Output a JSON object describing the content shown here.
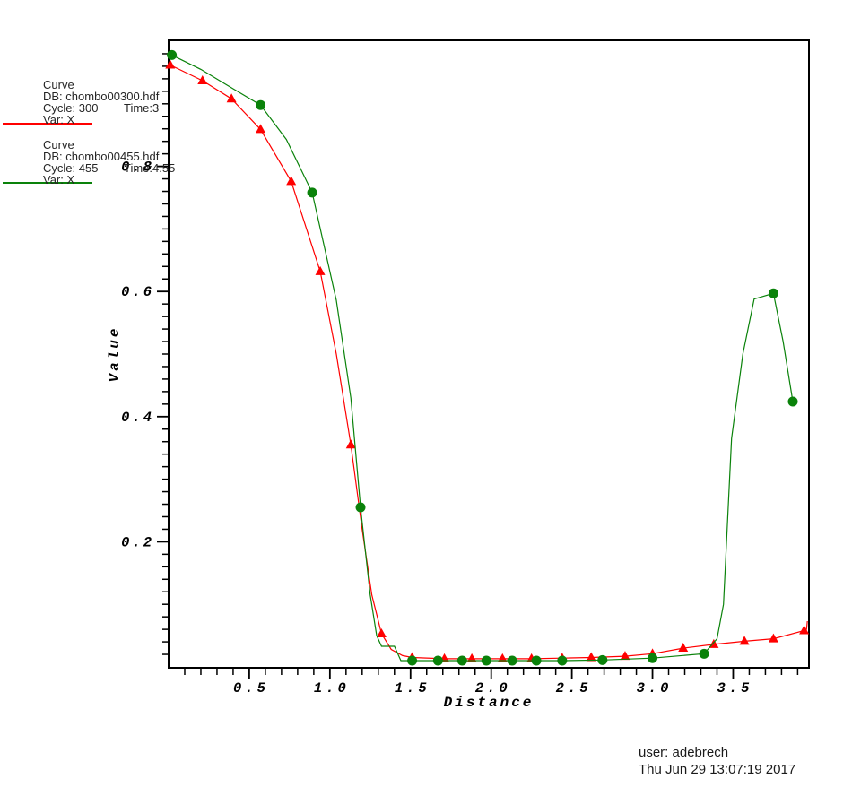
{
  "legend": {
    "curves": [
      {
        "plot_type": "Curve",
        "db": "DB: chombo00300.hdf",
        "cycle": "Cycle: 300",
        "time": "Time:3",
        "var": "Var: X",
        "color": "#ff0000"
      },
      {
        "plot_type": "Curve",
        "db": "DB: chombo00455.hdf",
        "cycle": "Cycle: 455",
        "time": "Time:4.55",
        "var": "Var: X",
        "color": "#0a820a"
      }
    ]
  },
  "footer": {
    "user": "user: adebrech",
    "timestamp": "Thu Jun 29 13:07:19 2017"
  },
  "chart_data": {
    "type": "line",
    "title": "",
    "xlabel": "Distance",
    "ylabel": "Value",
    "xlim": [
      0,
      3.97
    ],
    "ylim": [
      0,
      1.0
    ],
    "x_major_ticks": [
      0.5,
      1.0,
      1.5,
      2.0,
      2.5,
      3.0,
      3.5
    ],
    "y_major_ticks": [
      0.2,
      0.4,
      0.6,
      0.8
    ],
    "x_minor_step": 0.1,
    "y_minor_step": 0.02,
    "grid": false,
    "legend_position": "upper-left-outside",
    "axis_color": "#000000",
    "series": [
      {
        "name": "chombo00300.hdf Var: X",
        "cycle": 300,
        "time": 3,
        "color": "#ff0000",
        "marker": "triangle",
        "points": [
          [
            0.01,
            0.962
          ],
          [
            0.21,
            0.937
          ],
          [
            0.39,
            0.908
          ],
          [
            0.57,
            0.859
          ],
          [
            0.76,
            0.776
          ],
          [
            0.94,
            0.632
          ],
          [
            1.04,
            0.5
          ],
          [
            1.13,
            0.355
          ],
          [
            1.2,
            0.22
          ],
          [
            1.26,
            0.115
          ],
          [
            1.32,
            0.053
          ],
          [
            1.38,
            0.028
          ],
          [
            1.45,
            0.018
          ],
          [
            1.51,
            0.015
          ],
          [
            1.71,
            0.013
          ],
          [
            1.88,
            0.013
          ],
          [
            2.07,
            0.013
          ],
          [
            2.25,
            0.013
          ],
          [
            2.44,
            0.014
          ],
          [
            2.62,
            0.015
          ],
          [
            2.83,
            0.017
          ],
          [
            3.0,
            0.021
          ],
          [
            3.19,
            0.03
          ],
          [
            3.38,
            0.036
          ],
          [
            3.57,
            0.041
          ],
          [
            3.75,
            0.045
          ],
          [
            3.94,
            0.058
          ],
          [
            3.955,
            0.06
          ],
          [
            3.96,
            0.073
          ]
        ],
        "marker_points": [
          [
            0.01,
            0.962
          ],
          [
            0.21,
            0.937
          ],
          [
            0.39,
            0.908
          ],
          [
            0.57,
            0.859
          ],
          [
            0.76,
            0.776
          ],
          [
            0.94,
            0.632
          ],
          [
            1.13,
            0.355
          ],
          [
            1.32,
            0.053
          ],
          [
            1.51,
            0.015
          ],
          [
            1.71,
            0.013
          ],
          [
            1.88,
            0.013
          ],
          [
            2.07,
            0.013
          ],
          [
            2.25,
            0.013
          ],
          [
            2.44,
            0.014
          ],
          [
            2.62,
            0.015
          ],
          [
            2.83,
            0.017
          ],
          [
            3.0,
            0.021
          ],
          [
            3.19,
            0.03
          ],
          [
            3.38,
            0.036
          ],
          [
            3.57,
            0.041
          ],
          [
            3.75,
            0.045
          ],
          [
            3.94,
            0.058
          ]
        ]
      },
      {
        "name": "chombo00455.hdf Var: X",
        "cycle": 455,
        "time": 4.55,
        "color": "#0a820a",
        "marker": "circle",
        "points": [
          [
            0.02,
            0.978
          ],
          [
            0.2,
            0.955
          ],
          [
            0.4,
            0.924
          ],
          [
            0.57,
            0.898
          ],
          [
            0.73,
            0.843
          ],
          [
            0.89,
            0.758
          ],
          [
            1.04,
            0.586
          ],
          [
            1.13,
            0.43
          ],
          [
            1.19,
            0.255
          ],
          [
            1.25,
            0.115
          ],
          [
            1.29,
            0.05
          ],
          [
            1.32,
            0.033
          ],
          [
            1.4,
            0.033
          ],
          [
            1.44,
            0.01
          ],
          [
            1.51,
            0.01
          ],
          [
            1.67,
            0.01
          ],
          [
            1.82,
            0.01
          ],
          [
            1.97,
            0.01
          ],
          [
            2.13,
            0.01
          ],
          [
            2.28,
            0.01
          ],
          [
            2.44,
            0.01
          ],
          [
            2.69,
            0.011
          ],
          [
            3.0,
            0.014
          ],
          [
            3.32,
            0.021
          ],
          [
            3.4,
            0.045
          ],
          [
            3.44,
            0.1
          ],
          [
            3.49,
            0.365
          ],
          [
            3.56,
            0.5
          ],
          [
            3.63,
            0.588
          ],
          [
            3.75,
            0.597
          ],
          [
            3.81,
            0.52
          ],
          [
            3.87,
            0.424
          ]
        ],
        "marker_points": [
          [
            0.02,
            0.978
          ],
          [
            0.57,
            0.898
          ],
          [
            0.89,
            0.758
          ],
          [
            1.19,
            0.255
          ],
          [
            1.51,
            0.01
          ],
          [
            1.67,
            0.01
          ],
          [
            1.82,
            0.01
          ],
          [
            1.97,
            0.01
          ],
          [
            2.13,
            0.01
          ],
          [
            2.28,
            0.01
          ],
          [
            2.44,
            0.01
          ],
          [
            2.69,
            0.011
          ],
          [
            3.0,
            0.014
          ],
          [
            3.32,
            0.021
          ],
          [
            3.75,
            0.597
          ],
          [
            3.87,
            0.424
          ]
        ]
      }
    ]
  }
}
